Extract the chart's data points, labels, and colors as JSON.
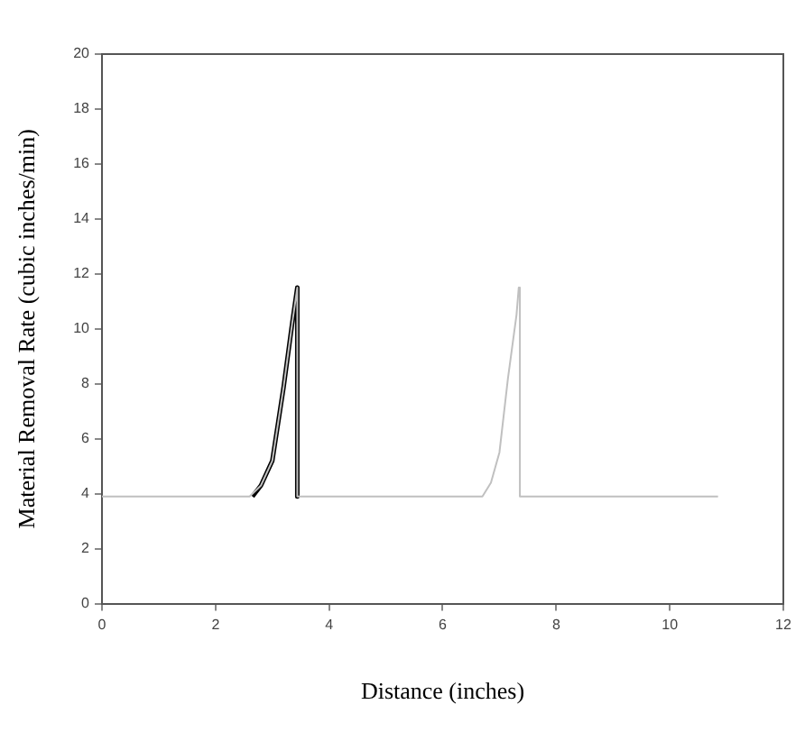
{
  "chart_data": {
    "type": "line",
    "xlabel": "Distance (inches)",
    "ylabel": "Material Removal Rate (cubic inches/min)",
    "xlim": [
      0,
      12
    ],
    "xticks": [
      0,
      2,
      4,
      6,
      8,
      10,
      12
    ],
    "ylim": [
      0,
      20
    ],
    "yticks": [
      0,
      2,
      4,
      6,
      8,
      10,
      12,
      14,
      16,
      18,
      20
    ],
    "grid": false,
    "legend": false,
    "marker": "none",
    "line_style": "solid",
    "series": [
      {
        "color": "#c0c0c0",
        "x": [
          0,
          2.6,
          2.8,
          3.0,
          3.2,
          3.35,
          3.44,
          3.44,
          3.45,
          6.7,
          6.85,
          7.0,
          7.15,
          7.3,
          7.34,
          7.36,
          7.36,
          10.85
        ],
        "values": [
          3.9,
          3.9,
          4.3,
          5.2,
          7.9,
          10.2,
          11.5,
          3.9,
          3.9,
          3.9,
          4.4,
          5.5,
          8.2,
          10.5,
          11.5,
          11.5,
          3.9,
          3.9
        ]
      },
      {
        "color": "#000000",
        "x": [
          2.65,
          2.8,
          3.0,
          3.2,
          3.35,
          3.44,
          3.44
        ],
        "values": [
          3.9,
          4.3,
          5.2,
          7.9,
          10.2,
          11.5,
          3.9
        ]
      }
    ]
  }
}
